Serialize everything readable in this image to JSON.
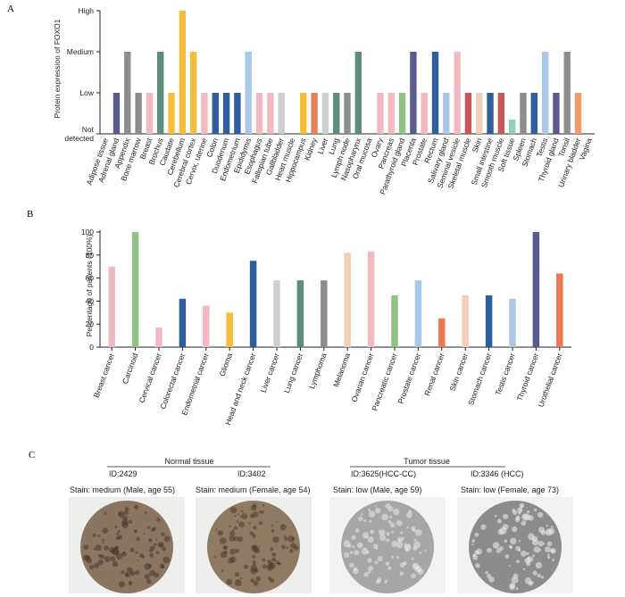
{
  "panels": {
    "a": "A",
    "b": "B",
    "c": "C"
  },
  "chart_data": [
    {
      "type": "bar",
      "panel": "A",
      "ylabel": "Protein expression of FOXO1",
      "y_levels": [
        "Not detected",
        "Low",
        "Medium",
        "High"
      ],
      "ylim": [
        0,
        3
      ],
      "categories": [
        "Adipose tissue",
        "Adrenal gland",
        "Appendix",
        "Bone marrow",
        "Breast",
        "Brochus",
        "Caudate",
        "Cerebellum",
        "Cerebral cortex",
        "Cervix, uterine",
        "Colon",
        "Duodenum",
        "Endometrium",
        "Epididymis",
        "Esophagus",
        "Fallopian tube",
        "Gallbladder",
        "Heart muscle",
        "Hippocampus",
        "Kidney",
        "Liver",
        "Lung",
        "Lymph node",
        "Nasopharynx",
        "Oral mucosa",
        "Ovary",
        "Pancreas",
        "Parathyroid gland",
        "Placenta",
        "Prostate",
        "Rectum",
        "Salivary gland",
        "Seminal vesicle",
        "Skeletal muscle",
        "Skin",
        "Small intestine",
        "Smooth muscle",
        "Soft tissue",
        "Spleen",
        "Stomach",
        "Testis",
        "Thyroid gland",
        "Tonsil",
        "Urinary bladder",
        "Vagina"
      ],
      "values": [
        0,
        1,
        2,
        1,
        1,
        2,
        1,
        3,
        2,
        1,
        1,
        1,
        1,
        2,
        1,
        1,
        1,
        0,
        1,
        1,
        1,
        1,
        1,
        2,
        0,
        1,
        1,
        1,
        2,
        1,
        2,
        1,
        2,
        1,
        1,
        1,
        1,
        0.35,
        1,
        1,
        2,
        1,
        2,
        1,
        0
      ],
      "colors": [
        "#5a5a8f",
        "#5a5a8f",
        "#8d8d8d",
        "#8d8d8d",
        "#f3b9c1",
        "#5e8b80",
        "#f6bd3b",
        "#f6bd3b",
        "#f6bd3b",
        "#f3b9c1",
        "#2e5e9c",
        "#2e5e9c",
        "#2e5e9c",
        "#a8c8e8",
        "#f3b9c1",
        "#f3b9c1",
        "#cfcfcf",
        "#cfcfcf",
        "#f6bd3b",
        "#e8825a",
        "#cfcfcf",
        "#5e8b80",
        "#8d8d8d",
        "#5e8b80",
        "#cfcfcf",
        "#f3b9c1",
        "#f3b9c1",
        "#8fc284",
        "#5a5a8f",
        "#f3b9c1",
        "#2e5e9c",
        "#a8c8e8",
        "#f3b9c1",
        "#c8555a",
        "#f3cfb8",
        "#2e5e9c",
        "#c8555a",
        "#8fd0b8",
        "#8d8d8d",
        "#2e5e9c",
        "#a8c8e8",
        "#5a5a8f",
        "#8d8d8d",
        "#f29a6a",
        "#cfcfcf"
      ]
    },
    {
      "type": "bar",
      "panel": "B",
      "ylabel": "Percentage of patients (100%)",
      "ylim": [
        0,
        100
      ],
      "yticks": [
        0,
        20,
        40,
        60,
        80,
        100
      ],
      "categories": [
        "Breast cancer",
        "Carcinoid",
        "Cervical cancer",
        "Colorectal cancer",
        "Endometrial cancer",
        "Glioma",
        "Head and neck cancer",
        "Liver cancer",
        "Lung cancer",
        "Lymphoma",
        "Melanoma",
        "Ovarian cancer",
        "Pancreatic cancer",
        "Prostate cancer",
        "Renal cancer",
        "Skin cancer",
        "Stomach cancer",
        "Testis cancer",
        "Thyroid cancer",
        "Urothelial cancer"
      ],
      "values": [
        70,
        100,
        17,
        42,
        36,
        30,
        75,
        58,
        58,
        58,
        82,
        83,
        45,
        58,
        25,
        45,
        45,
        42,
        100,
        64
      ],
      "colors": [
        "#f3b9c1",
        "#8fc284",
        "#f3b9c1",
        "#2e5e9c",
        "#f3b9c1",
        "#f6bd3b",
        "#2e5e9c",
        "#cfcfcf",
        "#5e8b80",
        "#8d8d8d",
        "#f3cfb8",
        "#f3b9c1",
        "#8fc284",
        "#a8c8e8",
        "#f07850",
        "#f3cfb8",
        "#2e5e9c",
        "#a8c8e8",
        "#5a5a8f",
        "#f07850"
      ]
    }
  ],
  "panel_c": {
    "groups": [
      {
        "title": "Normal tissue"
      },
      {
        "title": "Tumor tissue"
      }
    ],
    "samples": [
      {
        "id": "ID:2429",
        "stain": "Stain: medium (Male, age 55)",
        "tone": "#8a7660"
      },
      {
        "id": "ID:3402",
        "stain": "Stain: medium (Female, age 54)",
        "tone": "#8f7a62"
      },
      {
        "id": "ID:3625(HCC-CC)",
        "stain": "Stain: low (Male, age 59)",
        "tone": "#a6a6a6"
      },
      {
        "id": "ID:3346 (HCC)",
        "stain": "Stain: low (Female, age 73)",
        "tone": "#8c8c8c"
      }
    ]
  }
}
